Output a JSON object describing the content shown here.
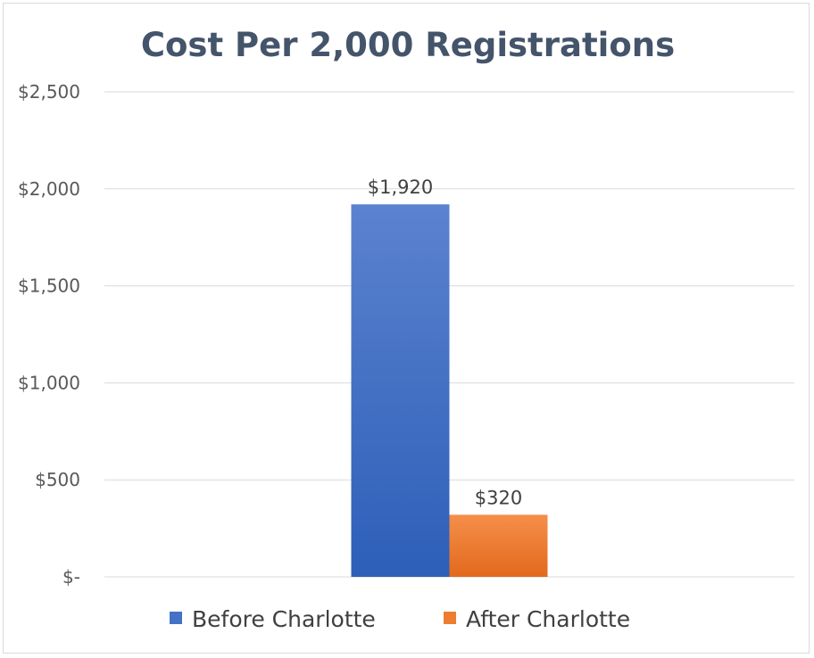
{
  "chart_data": {
    "type": "bar",
    "title": "Cost Per 2,000 Registrations",
    "categories": [
      ""
    ],
    "series": [
      {
        "name": "Before Charlotte",
        "values": [
          1920
        ],
        "label": "$1,920",
        "color": "#4472c4"
      },
      {
        "name": "After Charlotte",
        "values": [
          320
        ],
        "label": "$320",
        "color": "#ed7d31"
      }
    ],
    "ylim": [
      0,
      2500
    ],
    "yticks": [
      {
        "value": 0,
        "label": "$-"
      },
      {
        "value": 500,
        "label": "$500"
      },
      {
        "value": 1000,
        "label": "$1,000"
      },
      {
        "value": 1500,
        "label": "$1,500"
      },
      {
        "value": 2000,
        "label": "$2,000"
      },
      {
        "value": 2500,
        "label": "$2,500"
      }
    ],
    "grid": true,
    "legend": "bottom"
  }
}
